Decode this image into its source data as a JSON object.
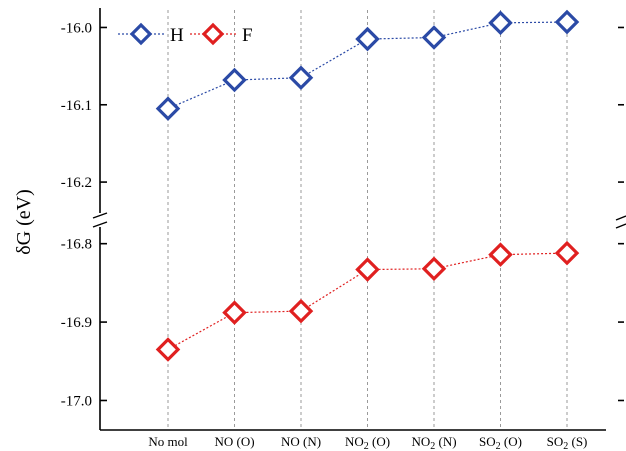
{
  "chart_data": {
    "type": "line",
    "title": "",
    "xlabel": "",
    "ylabel": "δG (eV)",
    "categories": [
      {
        "main": "No mol",
        "sub": "",
        "tail": ""
      },
      {
        "main": "NO",
        "sub": "",
        "tail": " (O)"
      },
      {
        "main": "NO",
        "sub": "",
        "tail": " (N)"
      },
      {
        "main": "NO",
        "sub": "2",
        "tail": " (O)"
      },
      {
        "main": "NO",
        "sub": "2",
        "tail": " (N)"
      },
      {
        "main": "SO",
        "sub": "2",
        "tail": " (O)"
      },
      {
        "main": "SO",
        "sub": "2",
        "tail": " (S)"
      }
    ],
    "series": [
      {
        "name": "H",
        "color": "#2b4aa6",
        "marker": "open-diamond",
        "line_style": "dotted",
        "values": [
          -16.105,
          -16.068,
          -16.065,
          -16.015,
          -16.013,
          -15.994,
          -15.993
        ]
      },
      {
        "name": "F",
        "color": "#e02020",
        "marker": "open-diamond",
        "line_style": "dotted",
        "values": [
          -16.935,
          -16.888,
          -16.886,
          -16.833,
          -16.832,
          -16.814,
          -16.812
        ]
      }
    ],
    "y_axis": {
      "broken": true,
      "segments": [
        {
          "range": [
            -16.24,
            -15.98
          ],
          "ticks": [
            -16.0,
            -16.1,
            -16.2
          ],
          "tick_labels": [
            "-16.0",
            "-16.1",
            "-16.2"
          ]
        },
        {
          "range": [
            -17.03,
            -16.78
          ],
          "ticks": [
            -16.8,
            -16.9,
            -17.0
          ],
          "tick_labels": [
            "-16.8",
            "-16.9",
            "-17.0"
          ]
        }
      ]
    },
    "vertical_gridlines": true,
    "horizontal_gridlines": false,
    "legend": {
      "placement": "top-left",
      "entries": [
        "H",
        "F"
      ]
    }
  }
}
